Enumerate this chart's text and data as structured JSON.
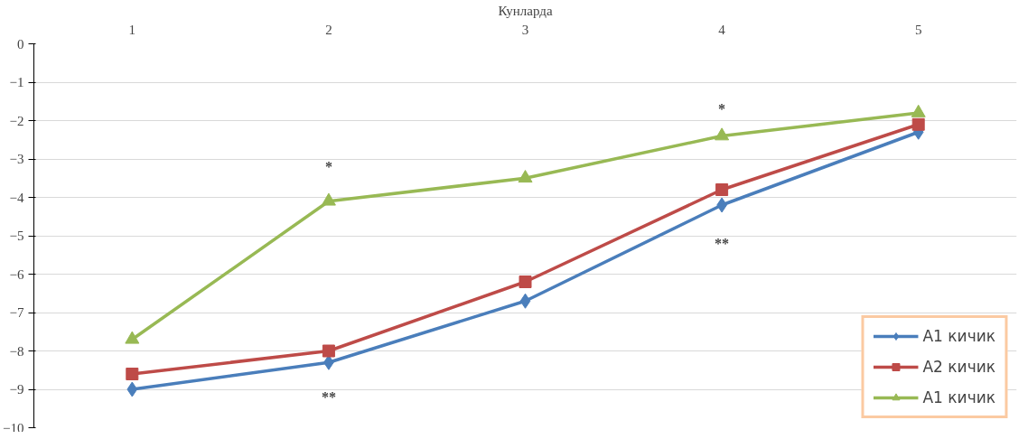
{
  "chart_data": {
    "type": "line",
    "xlabel": "Кунларда",
    "categories": [
      "1",
      "2",
      "3",
      "4",
      "5"
    ],
    "series": [
      {
        "name": "A1 кичик",
        "color": "#4a7ebb",
        "marker": "diamond",
        "values": [
          -9.0,
          -8.3,
          -6.7,
          -4.2,
          -2.3
        ]
      },
      {
        "name": "A2 кичик",
        "color": "#be4b48",
        "marker": "square",
        "values": [
          -8.6,
          -8.0,
          -6.2,
          -3.8,
          -2.1
        ]
      },
      {
        "name": "A1 кичик",
        "color": "#98b954",
        "marker": "triangle",
        "values": [
          -7.7,
          -4.1,
          -3.5,
          -2.4,
          -1.8
        ]
      }
    ],
    "ylim": [
      -10,
      0
    ],
    "yticks": [
      -10,
      -9,
      -8,
      -7,
      -6,
      -5,
      -4,
      -3,
      -2,
      -1,
      0
    ],
    "grid": "y",
    "legend": "bottom right",
    "annotations": [
      "*",
      "**",
      "*",
      "**"
    ]
  }
}
